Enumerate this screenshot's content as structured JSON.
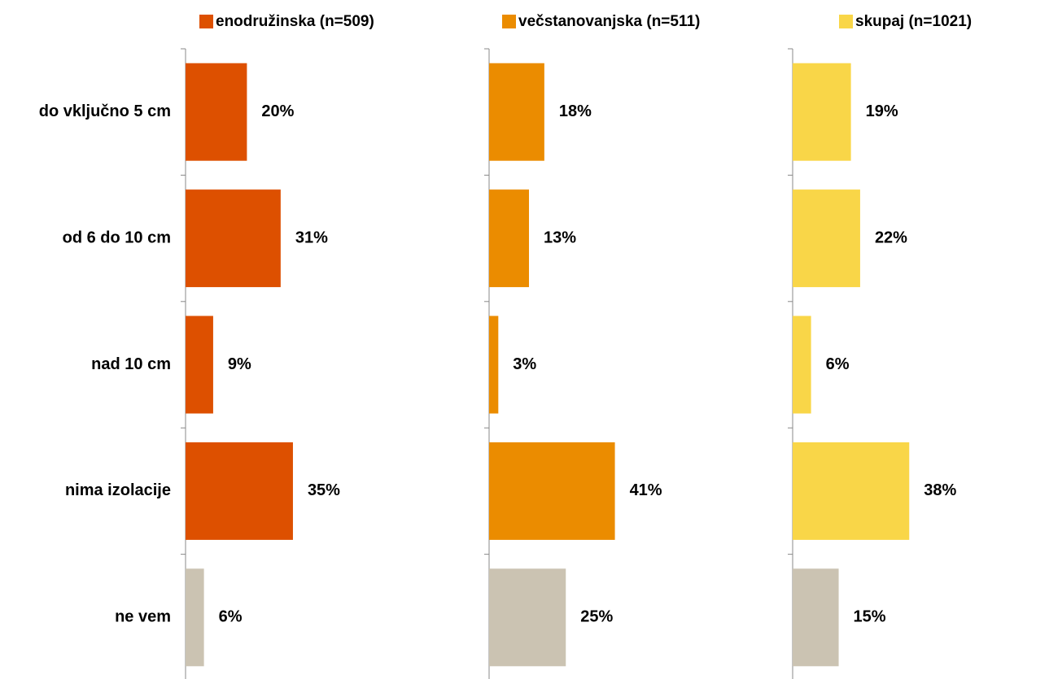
{
  "chart_data": {
    "type": "bar",
    "orientation": "horizontal",
    "categories": [
      "do vključno 5 cm",
      "od 6 do 10 cm",
      "nad 10 cm",
      "nima izolacije",
      "ne vem"
    ],
    "series": [
      {
        "name": "enodružinska (n=509)",
        "color": "#dd5000",
        "colors": [
          "#dd5000",
          "#dd5000",
          "#dd5000",
          "#dd5000",
          "#cbc3b2"
        ],
        "values": [
          20,
          31,
          9,
          35,
          6
        ],
        "value_labels": [
          "20%",
          "31%",
          "9%",
          "35%",
          "6%"
        ]
      },
      {
        "name": "večstanovanjska (n=511)",
        "color": "#eb8c00",
        "colors": [
          "#eb8c00",
          "#eb8c00",
          "#eb8c00",
          "#eb8c00",
          "#cbc3b2"
        ],
        "values": [
          18,
          13,
          3,
          41,
          25
        ],
        "value_labels": [
          "18%",
          "13%",
          "3%",
          "41%",
          "25%"
        ]
      },
      {
        "name": "skupaj (n=1021)",
        "color": "#f9d648",
        "colors": [
          "#f9d648",
          "#f9d648",
          "#f9d648",
          "#f9d648",
          "#cbc3b2"
        ],
        "values": [
          19,
          22,
          6,
          38,
          15
        ],
        "value_labels": [
          "19%",
          "22%",
          "6%",
          "38%",
          "15%"
        ]
      }
    ]
  }
}
